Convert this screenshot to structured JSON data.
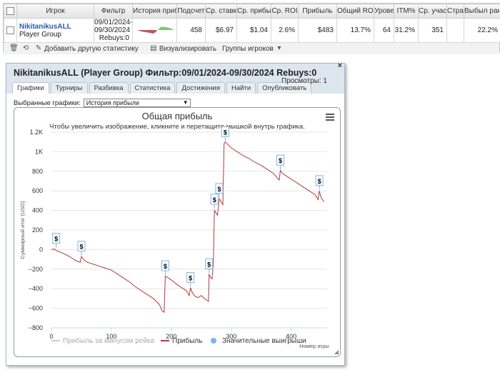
{
  "table": {
    "headers": [
      "Игрок",
      "Фильтр",
      "История прибыли",
      "Подсчет",
      "Ср. ставка",
      "Ср. прибыль",
      "Ср. ROI",
      "Прибыль",
      "Общий ROI",
      "Уровень",
      "ITM%",
      "Ср. участники",
      "Страна",
      "Выбыл ранее"
    ],
    "row": {
      "player_name": "NikitanikusALL",
      "player_group": "Player Group",
      "filter_line1": "09/01/2024-",
      "filter_line2": "09/30/2024",
      "filter_line3": "Rebuys:0",
      "count": "458",
      "avg_stake": "$6.97",
      "avg_profit": "$1.04",
      "avg_roi": "2.6%",
      "profit": "$483",
      "total_roi": "13.7%",
      "level": "64",
      "itm": "31.2%",
      "avg_entrants": "351",
      "country": "",
      "early_out": "22.2%"
    }
  },
  "toolbar": {
    "add_stats_label": "Добавить другую статистику",
    "visualize_label": "Визуализировать",
    "player_groups_label": "Группы игроков"
  },
  "dialog": {
    "title": "NikitanikusALL (Player Group) Фильтр:09/01/2024-09/30/2024 Rebuys:0",
    "views": "Просмотры: 1",
    "close": "×",
    "tabs": [
      "Графики",
      "Турниры",
      "Разбивка",
      "Статистика",
      "Достижения",
      "Найти",
      "Опубликовать"
    ],
    "active_tab": 0,
    "selected_charts_label": "Выбранные графики:",
    "selected_chart_value": "История прибыли"
  },
  "chart_data": {
    "type": "line",
    "title": "Общая прибыль",
    "subtitle": "Чтобы увеличить изображение, кликните и перетащите мышкой внутрь графика.",
    "xlabel": "Номер игры",
    "ylabel": "Суммарный итог (USD)",
    "xlim": [
      0,
      460
    ],
    "ylim": [
      -800,
      1200
    ],
    "xticks": [
      0,
      100,
      200,
      300,
      400
    ],
    "yticks": [
      -800,
      -600,
      -400,
      -200,
      0,
      200,
      400,
      600,
      800,
      1000,
      1200
    ],
    "ytick_labels": [
      "−800",
      "−600",
      "−400",
      "−200",
      "0",
      "200",
      "400",
      "600",
      "800",
      "1K",
      "1.2K"
    ],
    "grid": true,
    "colors": {
      "profit": "#b03a3a",
      "no_rake": "#cccccc",
      "big_wins": "#7cb5ec"
    },
    "series": [
      {
        "name": "Прибыль",
        "points": [
          [
            0,
            0
          ],
          [
            5,
            5
          ],
          [
            8,
            -10
          ],
          [
            12,
            -20
          ],
          [
            20,
            -40
          ],
          [
            30,
            -70
          ],
          [
            40,
            -110
          ],
          [
            48,
            -130
          ],
          [
            50,
            -70
          ],
          [
            55,
            -110
          ],
          [
            60,
            -130
          ],
          [
            70,
            -150
          ],
          [
            80,
            -170
          ],
          [
            90,
            -190
          ],
          [
            100,
            -210
          ],
          [
            110,
            -250
          ],
          [
            120,
            -290
          ],
          [
            130,
            -330
          ],
          [
            140,
            -380
          ],
          [
            150,
            -420
          ],
          [
            160,
            -460
          ],
          [
            170,
            -500
          ],
          [
            180,
            -560
          ],
          [
            185,
            -630
          ],
          [
            188,
            -640
          ],
          [
            190,
            -270
          ],
          [
            195,
            -290
          ],
          [
            200,
            -310
          ],
          [
            210,
            -360
          ],
          [
            220,
            -400
          ],
          [
            225,
            -420
          ],
          [
            230,
            -470
          ],
          [
            232,
            -390
          ],
          [
            235,
            -440
          ],
          [
            240,
            -480
          ],
          [
            245,
            -490
          ],
          [
            250,
            -470
          ],
          [
            255,
            -500
          ],
          [
            260,
            -520
          ],
          [
            262,
            -530
          ],
          [
            263,
            -250
          ],
          [
            265,
            -280
          ],
          [
            268,
            -300
          ],
          [
            270,
            -150
          ],
          [
            272,
            400
          ],
          [
            274,
            380
          ],
          [
            277,
            350
          ],
          [
            280,
            520
          ],
          [
            283,
            490
          ],
          [
            286,
            460
          ],
          [
            288,
            1080
          ],
          [
            290,
            1100
          ],
          [
            295,
            1070
          ],
          [
            300,
            1040
          ],
          [
            310,
            1000
          ],
          [
            320,
            960
          ],
          [
            330,
            930
          ],
          [
            340,
            890
          ],
          [
            350,
            860
          ],
          [
            360,
            820
          ],
          [
            370,
            780
          ],
          [
            380,
            710
          ],
          [
            382,
            810
          ],
          [
            385,
            780
          ],
          [
            390,
            760
          ],
          [
            400,
            720
          ],
          [
            410,
            680
          ],
          [
            420,
            640
          ],
          [
            430,
            600
          ],
          [
            440,
            560
          ],
          [
            445,
            510
          ],
          [
            447,
            600
          ],
          [
            450,
            530
          ],
          [
            455,
            490
          ]
        ]
      },
      {
        "name": "Прибыль за минусом рейка",
        "points": []
      }
    ],
    "legend": [
      {
        "label": "Прибыль за минусом рейка",
        "kind": "line",
        "color": "#cccccc"
      },
      {
        "label": "Прибыль",
        "kind": "line",
        "color": "#b03a3a"
      },
      {
        "label": "Значительные выигрыши",
        "kind": "dot",
        "color": "#7cb5ec"
      }
    ],
    "big_win_markers": [
      [
        8,
        20
      ],
      [
        50,
        -60
      ],
      [
        190,
        -260
      ],
      [
        232,
        -380
      ],
      [
        263,
        -240
      ],
      [
        272,
        420
      ],
      [
        280,
        530
      ],
      [
        290,
        1110
      ],
      [
        382,
        820
      ],
      [
        447,
        610
      ]
    ],
    "marker_label": "$"
  }
}
